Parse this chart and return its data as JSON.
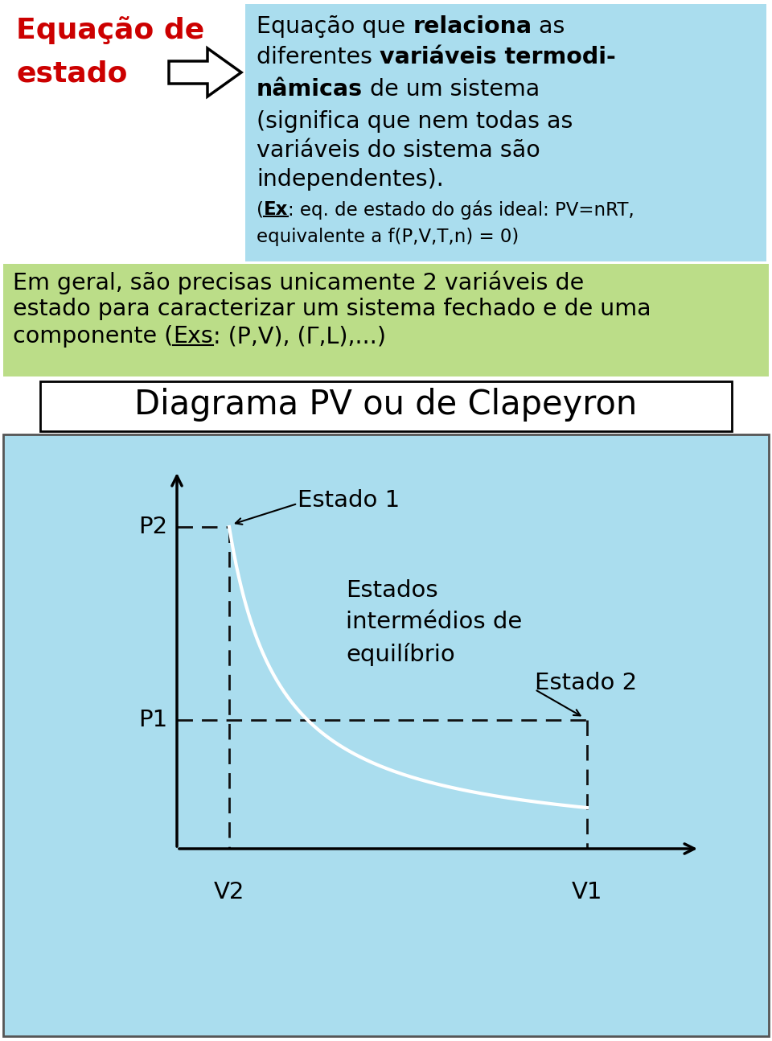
{
  "bg_color": "#ffffff",
  "top_left_color": "#cc0000",
  "cyan_box_color": "#aaddee",
  "green_box_color": "#bbdd88",
  "diagram_title": "Diagrama PV ou de Clapeyron",
  "diagram_bg": "#aaddee",
  "curve_color": "#ffffff",
  "dashed_color": "#111111",
  "label_estado1": "Estado 1",
  "label_estado2": "Estado 2",
  "label_intermedios": "Estados\nintermédios de\nequilíbrio",
  "label_P2": "P2",
  "label_P1": "P1",
  "label_V2": "V2",
  "label_V1": "V1",
  "cyan_lines": [
    {
      "parts": [
        [
          "Equação que ",
          false
        ],
        [
          "relaciona",
          true
        ],
        [
          " as",
          false
        ]
      ]
    },
    {
      "parts": [
        [
          "diferentes ",
          false
        ],
        [
          "variáveis termodi-",
          true
        ]
      ]
    },
    {
      "parts": [
        [
          "nâmicas",
          true
        ],
        [
          " de um sistema",
          false
        ]
      ]
    },
    {
      "parts": [
        [
          "(significa que nem todas as",
          false
        ]
      ]
    },
    {
      "parts": [
        [
          "variáveis do sistema são",
          false
        ]
      ]
    },
    {
      "parts": [
        [
          "independentes).",
          false
        ]
      ]
    },
    {
      "parts": [
        [
          "(",
          false
        ],
        [
          "Ex",
          true,
          true
        ],
        [
          ": eq. de estado do gás ideal: PV=nRT,",
          false
        ]
      ],
      "small": true
    },
    {
      "parts": [
        [
          "equivalente a f(P,V,T,n) = 0)",
          false
        ]
      ],
      "small": true
    }
  ],
  "green_lines": [
    {
      "parts": [
        [
          "Em geral, são precisas unicamente 2 variáveis de",
          false
        ]
      ]
    },
    {
      "parts": [
        [
          "estado para caracterizar um sistema fechado e de uma",
          false
        ]
      ]
    },
    {
      "parts": [
        [
          "componente (",
          false
        ],
        [
          "Exs",
          false,
          true
        ],
        [
          ": (P,V), (Γ,L),...)",
          false
        ]
      ]
    }
  ]
}
